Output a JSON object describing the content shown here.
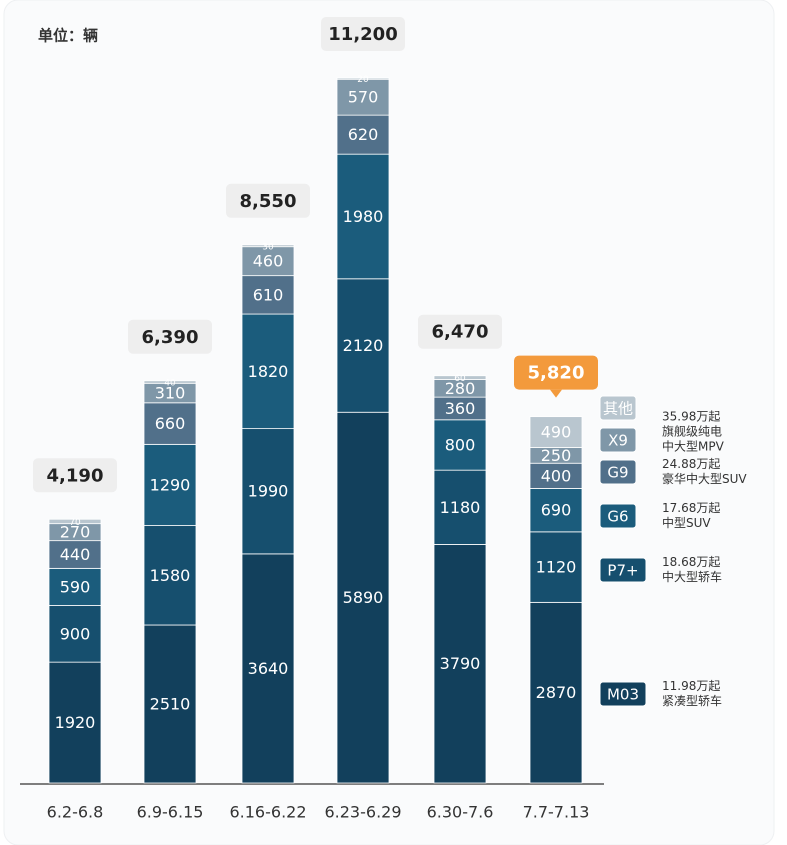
{
  "chart_data": {
    "type": "stacked-bar",
    "unit_label": "单位：辆",
    "categories": [
      "6.2-6.8",
      "6.9-6.15",
      "6.16-6.22",
      "6.23-6.29",
      "6.30-7.6",
      "7.7-7.13"
    ],
    "ylim": [
      0,
      11200
    ],
    "series": [
      {
        "name": "M03",
        "color": "#12405c",
        "values": [
          1920,
          2510,
          3640,
          5890,
          3790,
          2870
        ],
        "notes": [
          "11.98万起",
          "紧凑型轿车"
        ]
      },
      {
        "name": "P7+",
        "color": "#164f6e",
        "values": [
          900,
          1580,
          1990,
          2120,
          1180,
          1120
        ],
        "notes": [
          "18.68万起",
          "中大型轿车"
        ]
      },
      {
        "name": "G6",
        "color": "#1b5c7c",
        "values": [
          590,
          1290,
          1820,
          1980,
          800,
          690
        ],
        "notes": [
          "17.68万起",
          "中型SUV"
        ]
      },
      {
        "name": "G9",
        "color": "#51708a",
        "values": [
          440,
          660,
          610,
          620,
          360,
          400
        ],
        "notes": [
          "24.88万起",
          "豪华中大型SUV"
        ]
      },
      {
        "name": "X9",
        "color": "#7f97a8",
        "values": [
          270,
          310,
          460,
          570,
          280,
          250
        ],
        "notes": [
          "35.98万起",
          "旗舰级纯电",
          "中大型MPV"
        ]
      },
      {
        "name": "其他",
        "color": "#b9c6cf",
        "values": [
          70,
          40,
          30,
          20,
          60,
          490
        ]
      }
    ],
    "totals": {
      "values": [
        4190,
        6390,
        8550,
        11200,
        6470,
        5820
      ],
      "value_labels": [
        "4,190",
        "6,390",
        "8,550",
        "11,200",
        "6,470",
        "5,820"
      ]
    }
  }
}
